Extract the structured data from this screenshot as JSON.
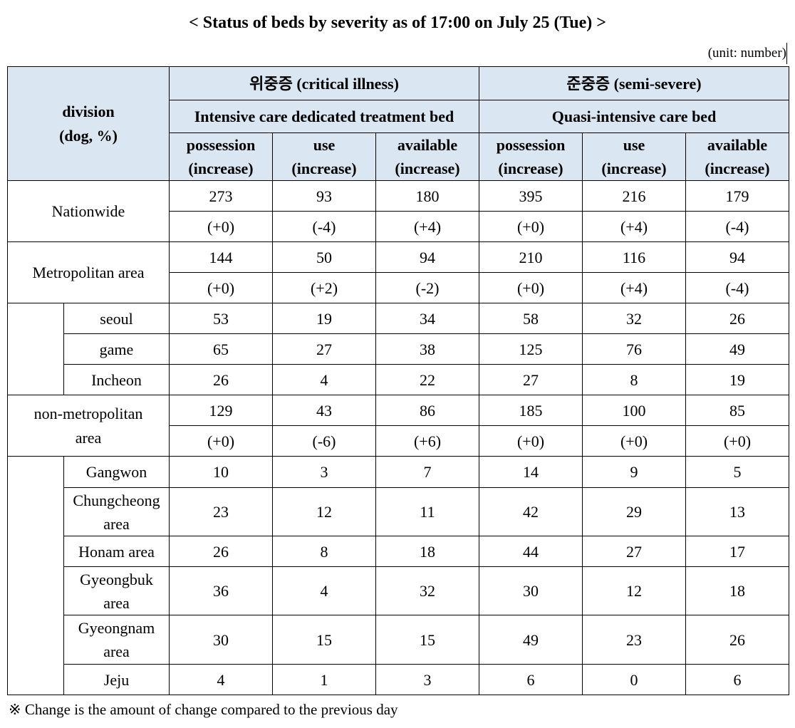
{
  "title": "< Status of beds by severity as of 17:00 on July 25 (Tue) >",
  "unit": "(unit: number)",
  "header": {
    "division": "division\n(dog, %)",
    "critical": "위중증 (critical illness)",
    "semi": "준중증 (semi-severe)",
    "critical_sub": "Intensive care dedicated treatment bed",
    "semi_sub": "Quasi-intensive care bed",
    "cols": [
      "possession\n(increase)",
      "use\n(increase)",
      "available\n(increase)",
      "possession\n(increase)",
      "use\n(increase)",
      "available\n(increase)"
    ]
  },
  "groups": [
    {
      "label": "Nationwide",
      "values": [
        "273",
        "93",
        "180",
        "395",
        "216",
        "179"
      ],
      "changes": [
        "(+0)",
        "(-4)",
        "(+4)",
        "(+0)",
        "(+4)",
        "(-4)"
      ]
    },
    {
      "label": "Metropolitan area",
      "values": [
        "144",
        "50",
        "94",
        "210",
        "116",
        "94"
      ],
      "changes": [
        "(+0)",
        "(+2)",
        "(-2)",
        "(+0)",
        "(+4)",
        "(-4)"
      ]
    },
    {
      "label": "non-metropolitan\narea",
      "values": [
        "129",
        "43",
        "86",
        "185",
        "100",
        "85"
      ],
      "changes": [
        "(+0)",
        "(-6)",
        "(+6)",
        "(+0)",
        "(+0)",
        "(+0)"
      ]
    }
  ],
  "metro_regions": [
    {
      "label": "seoul",
      "values": [
        "53",
        "19",
        "34",
        "58",
        "32",
        "26"
      ]
    },
    {
      "label": "game",
      "values": [
        "65",
        "27",
        "38",
        "125",
        "76",
        "49"
      ]
    },
    {
      "label": "Incheon",
      "values": [
        "26",
        "4",
        "22",
        "27",
        "8",
        "19"
      ]
    }
  ],
  "nonmetro_regions": [
    {
      "label": "Gangwon",
      "values": [
        "10",
        "3",
        "7",
        "14",
        "9",
        "5"
      ]
    },
    {
      "label": "Chungcheong\narea",
      "values": [
        "23",
        "12",
        "11",
        "42",
        "29",
        "13"
      ]
    },
    {
      "label": "Honam area",
      "values": [
        "26",
        "8",
        "18",
        "44",
        "27",
        "17"
      ]
    },
    {
      "label": "Gyeongbuk\narea",
      "values": [
        "36",
        "4",
        "32",
        "30",
        "12",
        "18"
      ]
    },
    {
      "label": "Gyeongnam\narea",
      "values": [
        "30",
        "15",
        "15",
        "49",
        "23",
        "26"
      ]
    },
    {
      "label": "Jeju",
      "values": [
        "4",
        "1",
        "3",
        "6",
        "0",
        "6"
      ]
    }
  ],
  "footnote": "※ Change is the amount of change compared to the previous day"
}
